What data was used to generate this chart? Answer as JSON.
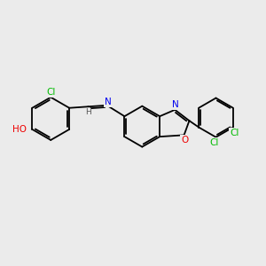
{
  "background_color": "#ebebeb",
  "bond_color": "#000000",
  "atom_colors": {
    "C": "#000000",
    "H": "#555555",
    "N": "#0000ee",
    "O": "#ee0000",
    "Cl": "#00bb00"
  },
  "font_size": 7.5,
  "figsize": [
    3.0,
    3.0
  ],
  "dpi": 100
}
